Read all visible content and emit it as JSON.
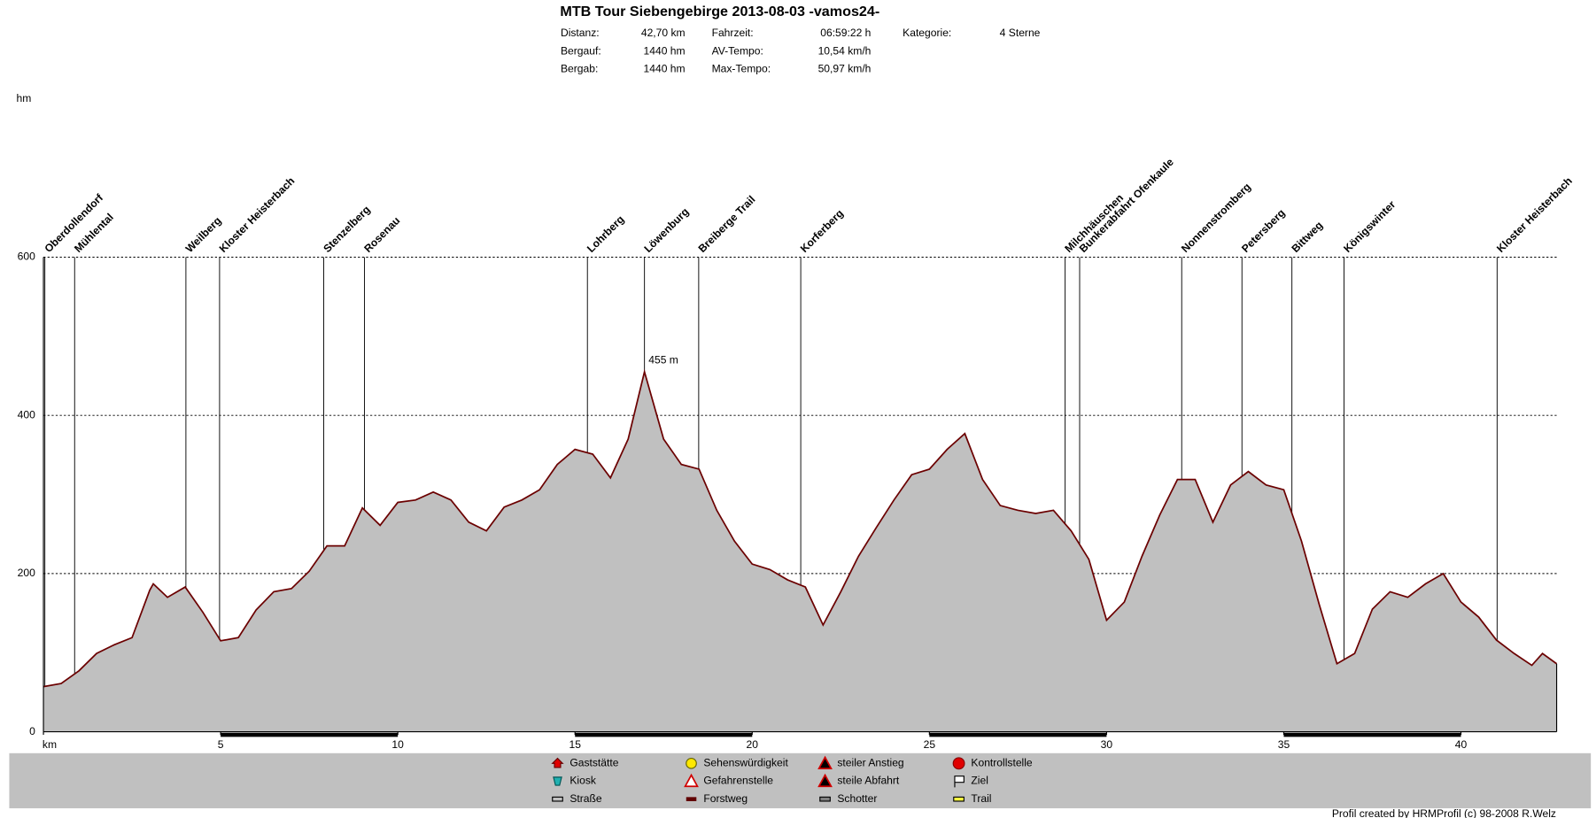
{
  "chart_data": {
    "type": "area",
    "title": "MTB Tour Siebengebirge 2013-08-03 -vamos24-",
    "y_label": "hm",
    "x": [
      0,
      0.5,
      1,
      1.5,
      2,
      2.5,
      3,
      3.1,
      3.5,
      4,
      4.5,
      5,
      5.5,
      6,
      6.5,
      7,
      7.5,
      8,
      8.5,
      9,
      9.5,
      10,
      10.5,
      11,
      11.5,
      12,
      12.5,
      13,
      13.5,
      14,
      14.5,
      15,
      15.5,
      16,
      16.5,
      16.96,
      17.5,
      18,
      18.5,
      19,
      19.5,
      20,
      20.5,
      21,
      21.5,
      22,
      22.5,
      23,
      23.5,
      24,
      24.5,
      25,
      25.5,
      26,
      26.5,
      27,
      27.5,
      28,
      28.5,
      29,
      29.5,
      30,
      30.5,
      31,
      31.5,
      32,
      32.5,
      33,
      33.5,
      34,
      34.5,
      35,
      35.5,
      36,
      36.5,
      37,
      37.5,
      38,
      38.5,
      39,
      39.5,
      40,
      40.5,
      41,
      41.5,
      42,
      42.3,
      42.7
    ],
    "values": [
      57,
      61,
      77,
      99,
      110,
      119,
      179,
      187,
      170,
      183,
      151,
      115,
      119,
      154,
      177,
      181,
      203,
      235,
      235,
      283,
      261,
      290,
      293,
      303,
      293,
      265,
      254,
      284,
      293,
      306,
      338,
      357,
      351,
      321,
      370,
      455,
      370,
      338,
      332,
      280,
      241,
      212,
      205,
      192,
      183,
      135,
      177,
      222,
      258,
      293,
      325,
      332,
      357,
      377,
      319,
      286,
      280,
      276,
      280,
      254,
      218,
      141,
      164,
      222,
      274,
      319,
      319,
      265,
      312,
      329,
      312,
      306,
      241,
      161,
      86,
      99,
      155,
      177,
      170,
      187,
      200,
      164,
      145,
      116,
      99,
      84,
      99,
      86
    ],
    "color": "#6b0000",
    "fill_color": "#c0c0c0",
    "xlim": [
      0,
      42.7
    ],
    "ylim": [
      0,
      600
    ],
    "xticks": [
      {
        "value": 0,
        "label": "km"
      },
      5,
      10,
      15,
      20,
      25,
      30,
      35,
      40
    ],
    "yticks": [
      0,
      200,
      400,
      600
    ],
    "grid": true,
    "markers": [
      {
        "x": 0.04,
        "label": "Oberdollendorf"
      },
      {
        "x": 0.88,
        "label": "Mühlental"
      },
      {
        "x": 4.02,
        "label": "Weilberg"
      },
      {
        "x": 4.97,
        "label": "Kloster Heisterbach"
      },
      {
        "x": 7.91,
        "label": "Stenzelberg"
      },
      {
        "x": 9.06,
        "label": "Rosenau"
      },
      {
        "x": 15.35,
        "label": "Lohrberg"
      },
      {
        "x": 16.96,
        "label": "Löwenburg"
      },
      {
        "x": 18.49,
        "label": "Breiberge Trail"
      },
      {
        "x": 21.37,
        "label": "Korferberg"
      },
      {
        "x": 28.83,
        "label": "Milchhäuschen"
      },
      {
        "x": 29.24,
        "label": "Bunkerabfahrt Ofenkaule"
      },
      {
        "x": 32.12,
        "label": "Nonnenstromberg"
      },
      {
        "x": 33.82,
        "label": "Petersberg"
      },
      {
        "x": 35.23,
        "label": "Bittweg"
      },
      {
        "x": 36.7,
        "label": "Königswinter"
      },
      {
        "x": 41.02,
        "label": "Kloster Heisterbach"
      }
    ],
    "annotations": [
      {
        "x": 16.96,
        "y": 455,
        "label": "455 m",
        "color": "#c00000"
      }
    ]
  },
  "header": {
    "stats": [
      [
        "Distanz:",
        "42,70 km",
        "Fahrzeit:",
        "06:59:22 h",
        "Kategorie:",
        "4 Sterne"
      ],
      [
        "Bergauf:",
        "1440 hm",
        "AV-Tempo:",
        "10,54 km/h"
      ],
      [
        "Bergab:",
        "1440 hm",
        "Max-Tempo:",
        "50,97 km/h"
      ]
    ]
  },
  "legend": {
    "items": [
      "Gaststätte",
      "Kiosk",
      "Straße",
      "Sehenswürdigkeit",
      "Gefahrenstelle",
      "Forstweg",
      "steiler Anstieg",
      "steile Abfahrt",
      "Schotter",
      "Kontrollstelle",
      "Ziel",
      "Trail"
    ]
  },
  "footer": "Profil created by HRMProfil (c) 98-2008 R.Welz"
}
